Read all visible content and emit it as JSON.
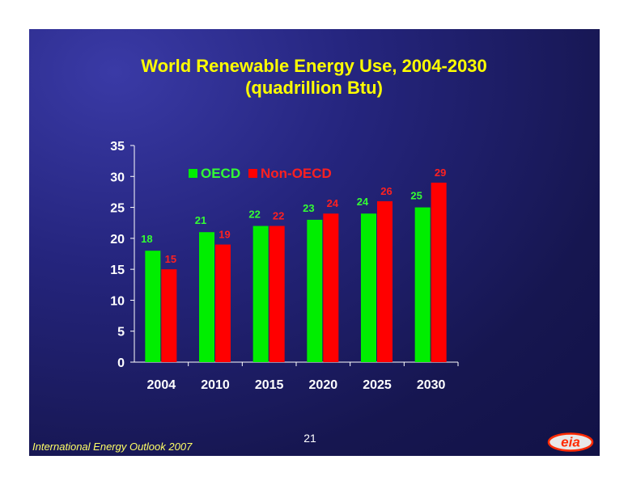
{
  "slide": {
    "title_line1": "World Renewable Energy Use, 2004-2030",
    "title_line2": "(quadrillion Btu)",
    "footer": "International Energy Outlook 2007",
    "page_number": "21",
    "logo_text": "eia"
  },
  "colors": {
    "oecd": "#00ee00",
    "non_oecd": "#ff0000",
    "oecd_label": "#33ff33",
    "non_oecd_label": "#ff2020",
    "axis": "#ffffff",
    "title": "#ffff00"
  },
  "chart_data": {
    "type": "bar",
    "title": "World Renewable Energy Use, 2004-2030",
    "subtitle": "(quadrillion Btu)",
    "categories": [
      "2004",
      "2010",
      "2015",
      "2020",
      "2025",
      "2030"
    ],
    "series": [
      {
        "name": "OECD",
        "values": [
          18,
          21,
          22,
          23,
          24,
          25
        ]
      },
      {
        "name": "Non-OECD",
        "values": [
          15,
          19,
          22,
          24,
          26,
          29
        ]
      }
    ],
    "ylim": [
      0,
      35
    ],
    "yticks": [
      0,
      5,
      10,
      15,
      20,
      25,
      30,
      35
    ],
    "legend_position": "top-left",
    "grid": false
  }
}
